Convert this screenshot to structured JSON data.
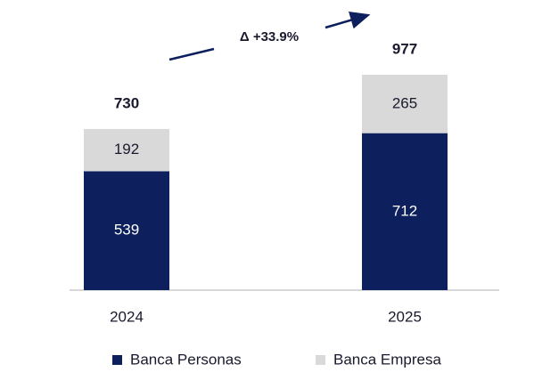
{
  "chart_data": {
    "type": "stacked_bar",
    "categories": [
      "2024",
      "2025"
    ],
    "series": [
      {
        "name": "Banca Personas",
        "color": "#0d1f5c",
        "values": [
          539,
          712
        ]
      },
      {
        "name": "Banca Empresa",
        "color": "#d9d9d9",
        "values": [
          192,
          265
        ]
      }
    ],
    "totals": [
      730,
      977
    ],
    "annotation": "Δ +33.9%",
    "legend": "bottom"
  }
}
